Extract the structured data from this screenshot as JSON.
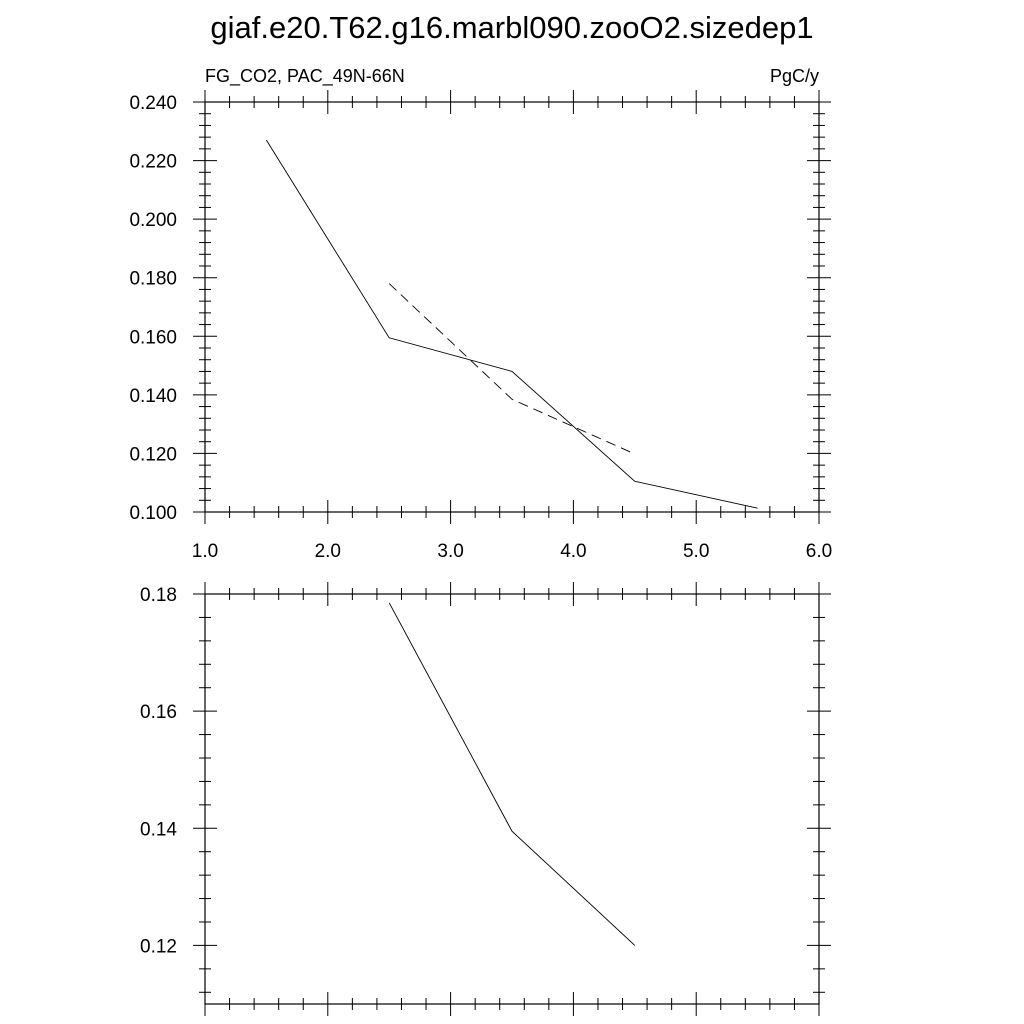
{
  "page": {
    "title": "giaf.e20.T62.g16.marbl090.zooO2.sizedep1"
  },
  "chart_data": [
    {
      "type": "line",
      "left_label": "FG_CO2, PAC_49N-66N",
      "right_label": "PgC/y",
      "xlim": [
        1.0,
        6.0
      ],
      "ylim": [
        0.1,
        0.24
      ],
      "xticks": [
        1.0,
        2.0,
        3.0,
        4.0,
        5.0,
        6.0
      ],
      "xtick_labels": [
        "1.0",
        "2.0",
        "3.0",
        "4.0",
        "5.0",
        "6.0"
      ],
      "yticks": [
        0.1,
        0.12,
        0.14,
        0.16,
        0.18,
        0.2,
        0.22,
        0.24
      ],
      "ytick_labels": [
        "0.100",
        "0.120",
        "0.140",
        "0.160",
        "0.180",
        "0.200",
        "0.220",
        "0.240"
      ],
      "grid": false,
      "series": [
        {
          "style": "solid",
          "x": [
            1.5,
            2.5,
            3.5,
            4.5,
            5.5
          ],
          "y": [
            0.227,
            0.1595,
            0.148,
            0.1105,
            0.1013
          ]
        },
        {
          "style": "dashed",
          "x": [
            2.5,
            3.5,
            4.5
          ],
          "y": [
            0.178,
            0.1385,
            0.1198
          ]
        }
      ]
    },
    {
      "type": "line",
      "xlim": [
        1.0,
        6.0
      ],
      "ylim": [
        0.11,
        0.18
      ],
      "xticks": [
        1.0,
        2.0,
        3.0,
        4.0,
        5.0,
        6.0
      ],
      "yticks": [
        0.12,
        0.14,
        0.16,
        0.18
      ],
      "ytick_labels": [
        "0.12",
        "0.14",
        "0.16",
        "0.18"
      ],
      "grid": false,
      "series": [
        {
          "style": "solid",
          "x": [
            2.5,
            3.5,
            4.5
          ],
          "y": [
            0.1785,
            0.1395,
            0.12
          ]
        }
      ]
    }
  ]
}
